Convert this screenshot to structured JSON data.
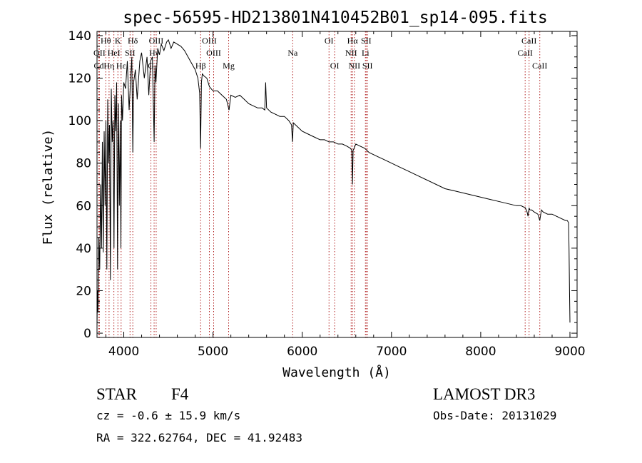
{
  "chart_data": {
    "type": "line",
    "title": "spec-56595-HD213801N410452B01_sp14-095.fits",
    "xlabel": "Wavelength (Å)",
    "ylabel": "Flux (relative)",
    "xlim": [
      3700,
      9080
    ],
    "ylim": [
      -2,
      142
    ],
    "xticks": [
      4000,
      5000,
      6000,
      7000,
      8000,
      9000
    ],
    "yticks": [
      0,
      20,
      40,
      60,
      80,
      100,
      120,
      140
    ],
    "series": [
      {
        "name": "spectrum",
        "x": [
          3700,
          3705,
          3710,
          3720,
          3730,
          3740,
          3750,
          3760,
          3770,
          3780,
          3790,
          3800,
          3810,
          3820,
          3830,
          3840,
          3850,
          3860,
          3870,
          3880,
          3890,
          3900,
          3910,
          3920,
          3930,
          3934,
          3940,
          3950,
          3960,
          3968,
          3975,
          3985,
          4000,
          4020,
          4040,
          4060,
          4080,
          4090,
          4101,
          4110,
          4130,
          4150,
          4180,
          4200,
          4230,
          4260,
          4280,
          4300,
          4320,
          4340,
          4350,
          4360,
          4380,
          4400,
          4420,
          4450,
          4480,
          4500,
          4530,
          4560,
          4600,
          4640,
          4680,
          4720,
          4760,
          4800,
          4830,
          4850,
          4861,
          4870,
          4880,
          4900,
          4930,
          4960,
          5000,
          5050,
          5100,
          5150,
          5180,
          5200,
          5250,
          5300,
          5350,
          5400,
          5450,
          5500,
          5550,
          5580,
          5590,
          5600,
          5650,
          5700,
          5750,
          5800,
          5850,
          5880,
          5890,
          5900,
          5950,
          6000,
          6050,
          6100,
          6150,
          6200,
          6250,
          6300,
          6350,
          6400,
          6450,
          6500,
          6540,
          6555,
          6563,
          6570,
          6580,
          6600,
          6650,
          6700,
          6750,
          6800,
          6850,
          6900,
          6950,
          7000,
          7100,
          7200,
          7300,
          7400,
          7500,
          7600,
          7700,
          7800,
          7900,
          8000,
          8100,
          8200,
          8300,
          8400,
          8450,
          8500,
          8520,
          8530,
          8542,
          8550,
          8570,
          8600,
          8640,
          8662,
          8680,
          8700,
          8750,
          8800,
          8850,
          8900,
          8950,
          8970,
          8985,
          8990,
          8995,
          9000
        ],
        "values": [
          3,
          20,
          10,
          45,
          30,
          70,
          40,
          90,
          38,
          95,
          60,
          100,
          30,
          110,
          80,
          98,
          25,
          115,
          90,
          100,
          40,
          112,
          95,
          118,
          30,
          70,
          108,
          60,
          100,
          40,
          112,
          100,
          118,
          115,
          128,
          105,
          122,
          130,
          85,
          118,
          124,
          110,
          128,
          132,
          120,
          130,
          112,
          128,
          130,
          90,
          126,
          118,
          134,
          131,
          136,
          133,
          137,
          138,
          134,
          137,
          136,
          135,
          133,
          130,
          127,
          124,
          120,
          113,
          87,
          118,
          122,
          121,
          120,
          116,
          114,
          114,
          112,
          110,
          105,
          112,
          111,
          112,
          110,
          108,
          107,
          106,
          106,
          105,
          118,
          106,
          104,
          103,
          102,
          102,
          100,
          98,
          90,
          99,
          97,
          95,
          94,
          93,
          92,
          91,
          91,
          90,
          90,
          89,
          89,
          88,
          87,
          86,
          70,
          86,
          87,
          89,
          88,
          87,
          85,
          84,
          83,
          82,
          81,
          80,
          78,
          76,
          74,
          72,
          70,
          68,
          67,
          66,
          65,
          64,
          63,
          62,
          61,
          60,
          60,
          59,
          57,
          55,
          59,
          58,
          58,
          57,
          56,
          53,
          58,
          57,
          56,
          56,
          55,
          54,
          53,
          53,
          52,
          40,
          20,
          5
        ]
      }
    ],
    "lines": [
      {
        "label": "Hθ",
        "x": 3798,
        "row": 0
      },
      {
        "label": "OII",
        "x": 3727,
        "row": 1
      },
      {
        "label": "Cd",
        "x": 3720,
        "row": 2
      },
      {
        "label": "Hη",
        "x": 3835,
        "row": 2
      },
      {
        "label": "K",
        "x": 3934,
        "row": 0
      },
      {
        "label": "HeI",
        "x": 3889,
        "row": 1
      },
      {
        "label": "Hδ",
        "x": 4101,
        "row": 0
      },
      {
        "label": "SII",
        "x": 4070,
        "row": 1
      },
      {
        "label": "Hε",
        "x": 3970,
        "row": 2
      },
      {
        "label": "OIII",
        "x": 4363,
        "row": 0
      },
      {
        "label": "Hγ",
        "x": 4340,
        "row": 1
      },
      {
        "label": "G",
        "x": 4304,
        "row": 2
      },
      {
        "label": "OIII",
        "x": 4959,
        "row": 0
      },
      {
        "label": "OIII",
        "x": 5007,
        "row": 1
      },
      {
        "label": "Hβ",
        "x": 4861,
        "row": 2
      },
      {
        "label": "Mg",
        "x": 5175,
        "row": 2
      },
      {
        "label": "Na",
        "x": 5893,
        "row": 1
      },
      {
        "label": "OI",
        "x": 6300,
        "row": 0
      },
      {
        "label": "OI",
        "x": 6363,
        "row": 2
      },
      {
        "label": "Hα",
        "x": 6563,
        "row": 0
      },
      {
        "label": "SII",
        "x": 6716,
        "row": 0
      },
      {
        "label": "NII",
        "x": 6548,
        "row": 1
      },
      {
        "label": "Li",
        "x": 6708,
        "row": 1
      },
      {
        "label": "NII",
        "x": 6584,
        "row": 2
      },
      {
        "label": "SII",
        "x": 6731,
        "row": 2
      },
      {
        "label": "CaII",
        "x": 8542,
        "row": 0
      },
      {
        "label": "CaII",
        "x": 8498,
        "row": 1
      },
      {
        "label": "CaII",
        "x": 8662,
        "row": 2
      }
    ],
    "grid": false,
    "legend": "none"
  },
  "info": {
    "class_label": "STAR",
    "subclass": "F4",
    "survey": "LAMOST DR3",
    "cz": "cz = -0.6 ± 15.9 km/s",
    "obs_date": "Obs-Date: 20131029",
    "coords": "RA = 322.62764, DEC =  41.92483"
  },
  "colors": {
    "line_marker": "#b22222",
    "spectrum": "#000000",
    "axes": "#000000"
  }
}
